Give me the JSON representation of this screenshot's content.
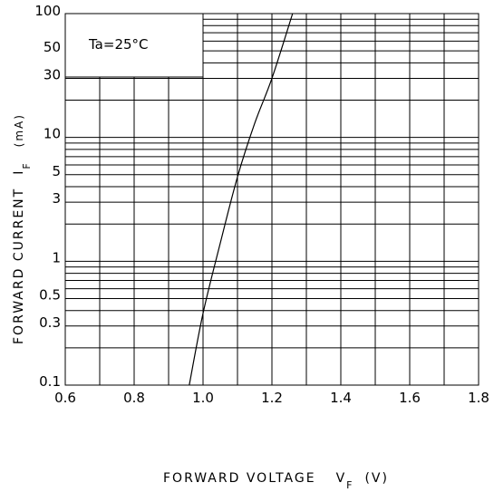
{
  "chart_data": {
    "type": "line",
    "title": "",
    "annotation": "Ta=25°C",
    "xlabel": {
      "main": "FORWARD VOLTAGE",
      "symbol": "V",
      "subscript": "F",
      "unit": "(V)"
    },
    "ylabel": {
      "main": "FORWARD CURRENT",
      "symbol": "I",
      "subscript": "F",
      "unit": "(mA)"
    },
    "xlim": [
      0.6,
      1.8
    ],
    "ylim": [
      0.1,
      100
    ],
    "x_scale": "linear",
    "y_scale": "log",
    "grid": true,
    "x_ticks": [
      0.6,
      0.8,
      1.0,
      1.2,
      1.4,
      1.6,
      1.8
    ],
    "x_tick_labels": [
      "0.6",
      "0.8",
      "1.0",
      "1.2",
      "1.4",
      "1.6",
      "1.8"
    ],
    "y_ticks": [
      0.1,
      0.3,
      0.5,
      1,
      3,
      5,
      10,
      30,
      50,
      100
    ],
    "y_tick_labels": [
      "0.1",
      "0.3",
      "0.5",
      "1",
      "3",
      "5",
      "10",
      "30",
      "50",
      "100"
    ],
    "series": [
      {
        "x": [
          0.96,
          1.0,
          1.05,
          1.1,
          1.15,
          1.2,
          1.26
        ],
        "y": [
          0.1,
          0.38,
          1.4,
          4.8,
          13,
          30,
          100
        ]
      }
    ],
    "colors": {
      "line": "#000000",
      "grid": "#000000",
      "background": "#ffffff"
    }
  }
}
